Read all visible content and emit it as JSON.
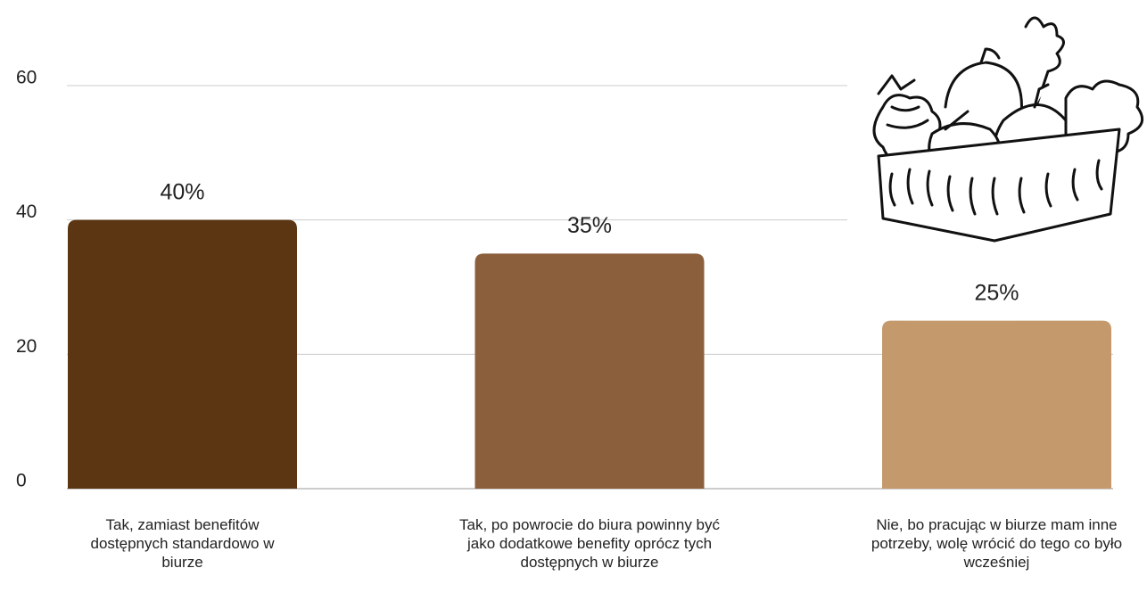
{
  "chart_data": {
    "type": "bar",
    "categories": [
      "Tak, zamiast benefitów dostępnych standardowo w biurze",
      "Tak, po powrocie do biura powinny być jako dodatkowe benefity oprócz tych dostępnych w biurze",
      "Nie, bo pracując w biurze mam inne potrzeby, wolę wrócić do tego co było wcześniej"
    ],
    "values": [
      40,
      35,
      25
    ],
    "value_labels": [
      "40%",
      "35%",
      "25%"
    ],
    "colors": [
      "#5c3613",
      "#8b5e3c",
      "#c49a6c"
    ],
    "ylim": [
      0,
      60
    ],
    "yticks": [
      0,
      20,
      40,
      60
    ],
    "grid": true
  }
}
